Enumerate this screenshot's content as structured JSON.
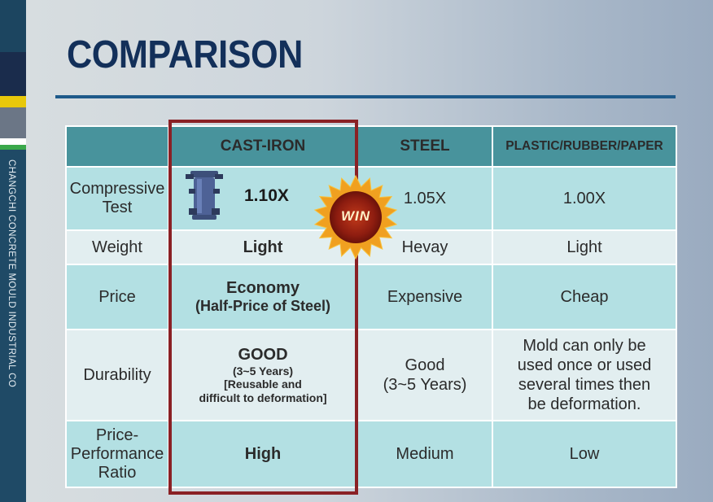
{
  "sidebar": {
    "vertical_text": "CHANGCHI CONCRETE MOULD INDUSTRIAL CO"
  },
  "title": "COMPARISON",
  "table": {
    "headers": [
      "",
      "CAST-IRON",
      "STEEL",
      "PLASTIC/RUBBER/PAPER"
    ],
    "rows": [
      {
        "label": "Compressive Test",
        "cast_iron": "1.10X",
        "steel": "1.05X",
        "plastic": "1.00X"
      },
      {
        "label": "Weight",
        "cast_iron": "Light",
        "steel": "Hevay",
        "plastic": "Light"
      },
      {
        "label": "Price",
        "cast_iron_line1": "Economy",
        "cast_iron_line2": "(Half-Price of Steel)",
        "steel": "Expensive",
        "plastic": "Cheap"
      },
      {
        "label": "Durability",
        "cast_iron_line1": "GOOD",
        "cast_iron_line2": "(3~5 Years)",
        "cast_iron_line3": "[Reusable and",
        "cast_iron_line4": "difficult to deformation]",
        "steel_line1": "Good",
        "steel_line2": "(3~5 Years)",
        "plastic_line1": "Mold can only be",
        "plastic_line2": "used once or used",
        "plastic_line3": "several times then",
        "plastic_line4": "be deformation."
      },
      {
        "label_line1": "Price-",
        "label_line2": "Performance",
        "label_line3": "Ratio",
        "cast_iron": "High",
        "steel": "Medium",
        "plastic": "Low"
      }
    ]
  },
  "badge": {
    "text": "WIN"
  },
  "colors": {
    "header_bg": "#48939c",
    "row_light": "#b3e0e3",
    "row_pale": "#e2eef0",
    "highlight_border": "#8a2125",
    "title": "#13305a"
  },
  "icons": [
    "cast-iron-mould-icon",
    "win-starburst-badge"
  ]
}
